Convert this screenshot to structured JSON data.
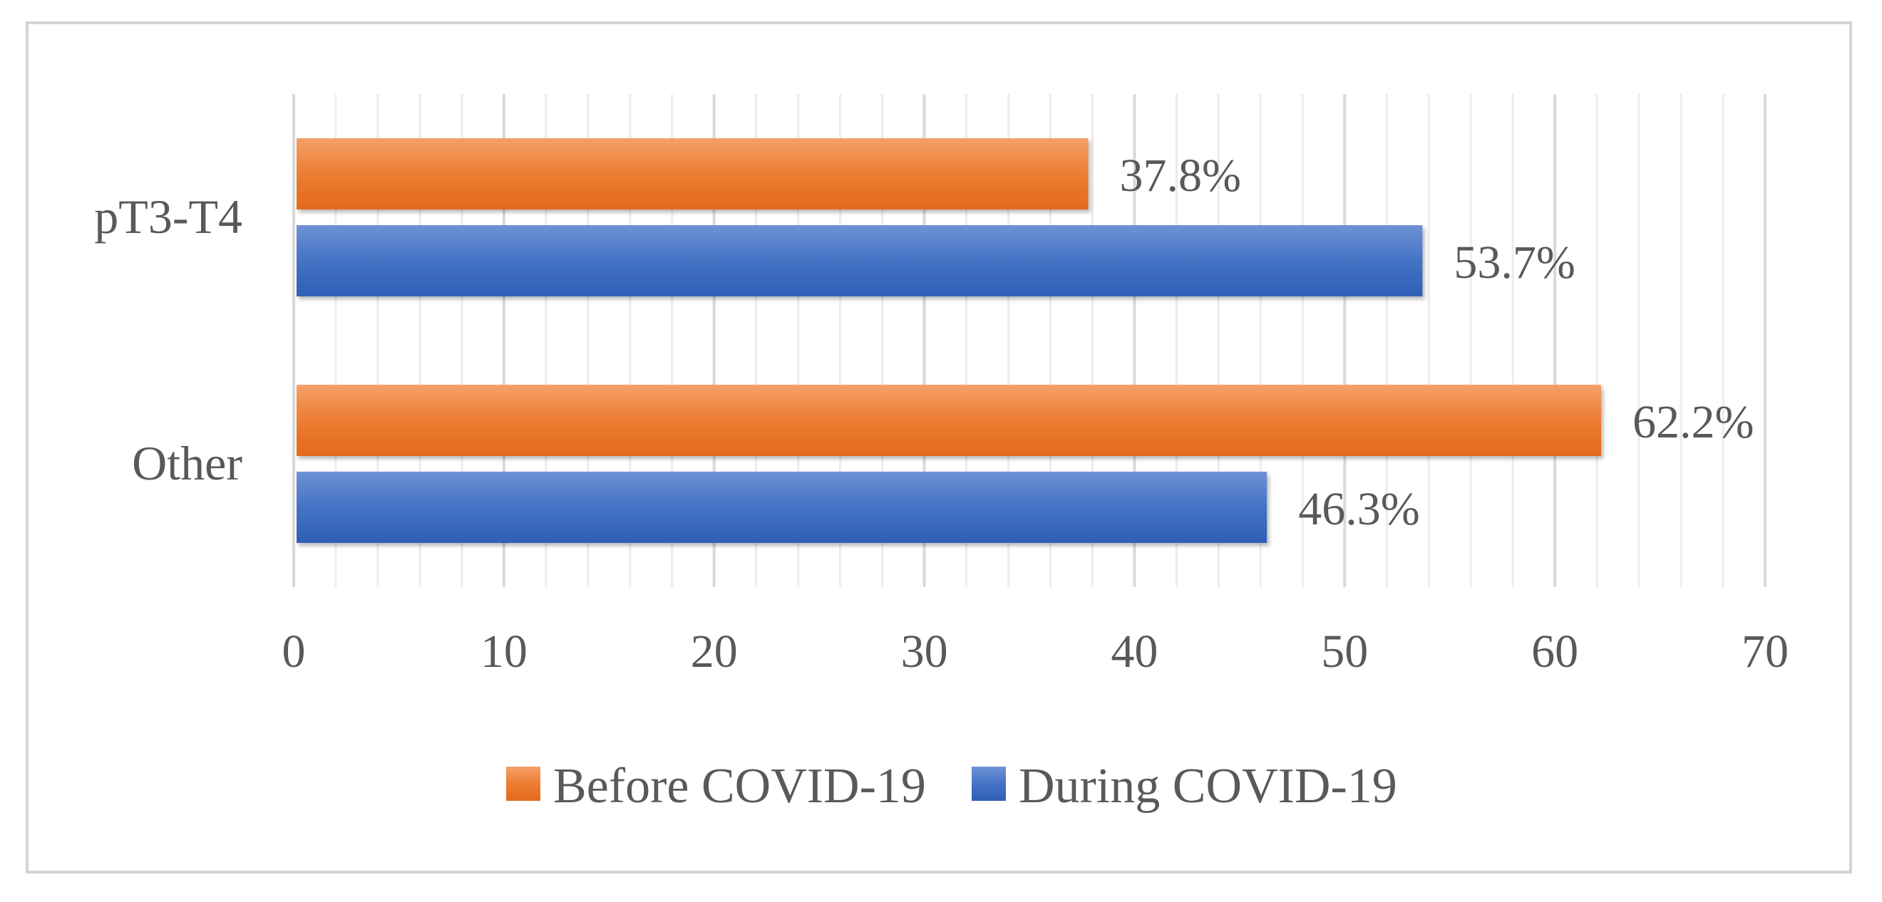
{
  "chart_data": {
    "type": "bar",
    "orientation": "horizontal",
    "title": "",
    "xlabel": "",
    "ylabel": "",
    "categories": [
      "pT3-T4",
      "Other"
    ],
    "series": [
      {
        "name": "Before COVID-19",
        "color": "#ed7d31",
        "values": [
          37.8,
          62.2
        ],
        "labels": [
          "37.8%",
          "62.2%"
        ]
      },
      {
        "name": "During COVID-19",
        "color": "#4472c4",
        "values": [
          53.7,
          46.3
        ],
        "labels": [
          "53.7%",
          "46.3%"
        ]
      }
    ],
    "xlim": [
      0,
      70
    ],
    "xticks": [
      0,
      10,
      20,
      30,
      40,
      50,
      60,
      70
    ],
    "xtick_labels": [
      "0",
      "10",
      "20",
      "30",
      "40",
      "50",
      "60",
      "70"
    ],
    "grid": true,
    "legend_position": "bottom"
  }
}
